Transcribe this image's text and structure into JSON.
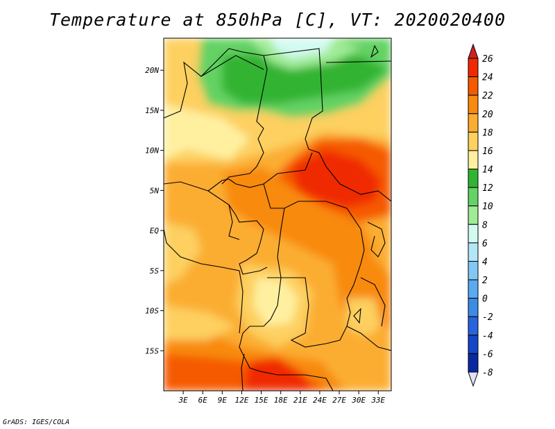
{
  "title": "Temperature at 850hPa [C], VT: 2020020400",
  "credit": "GrADS: IGES/COLA",
  "map": {
    "lat_ticks": [
      "20N",
      "15N",
      "10N",
      "5N",
      "EQ",
      "5S",
      "10S",
      "15S"
    ],
    "lon_ticks": [
      "3E",
      "6E",
      "9E",
      "12E",
      "15E",
      "18E",
      "21E",
      "24E",
      "27E",
      "30E",
      "33E"
    ],
    "lon_range": [
      0,
      35
    ],
    "lat_range": [
      -20,
      24
    ]
  },
  "colorbar": {
    "labels": [
      "26",
      "24",
      "22",
      "20",
      "18",
      "16",
      "14",
      "12",
      "10",
      "8",
      "6",
      "4",
      "2",
      "0",
      "-2",
      "-4",
      "-6",
      "-8"
    ],
    "colors": [
      "#f02a00",
      "#f55a00",
      "#f88a10",
      "#fbad30",
      "#fdd060",
      "#fff0a0",
      "#32b432",
      "#64d264",
      "#a0eb96",
      "#d2faf0",
      "#b4e6fa",
      "#82c8f5",
      "#5aaaf0",
      "#3c8ce6",
      "#2864dc",
      "#1446c8",
      "#0a28a0",
      "#000a6e"
    ],
    "top_color": "#d22020",
    "bottom_color": "#e0e0f8"
  }
}
